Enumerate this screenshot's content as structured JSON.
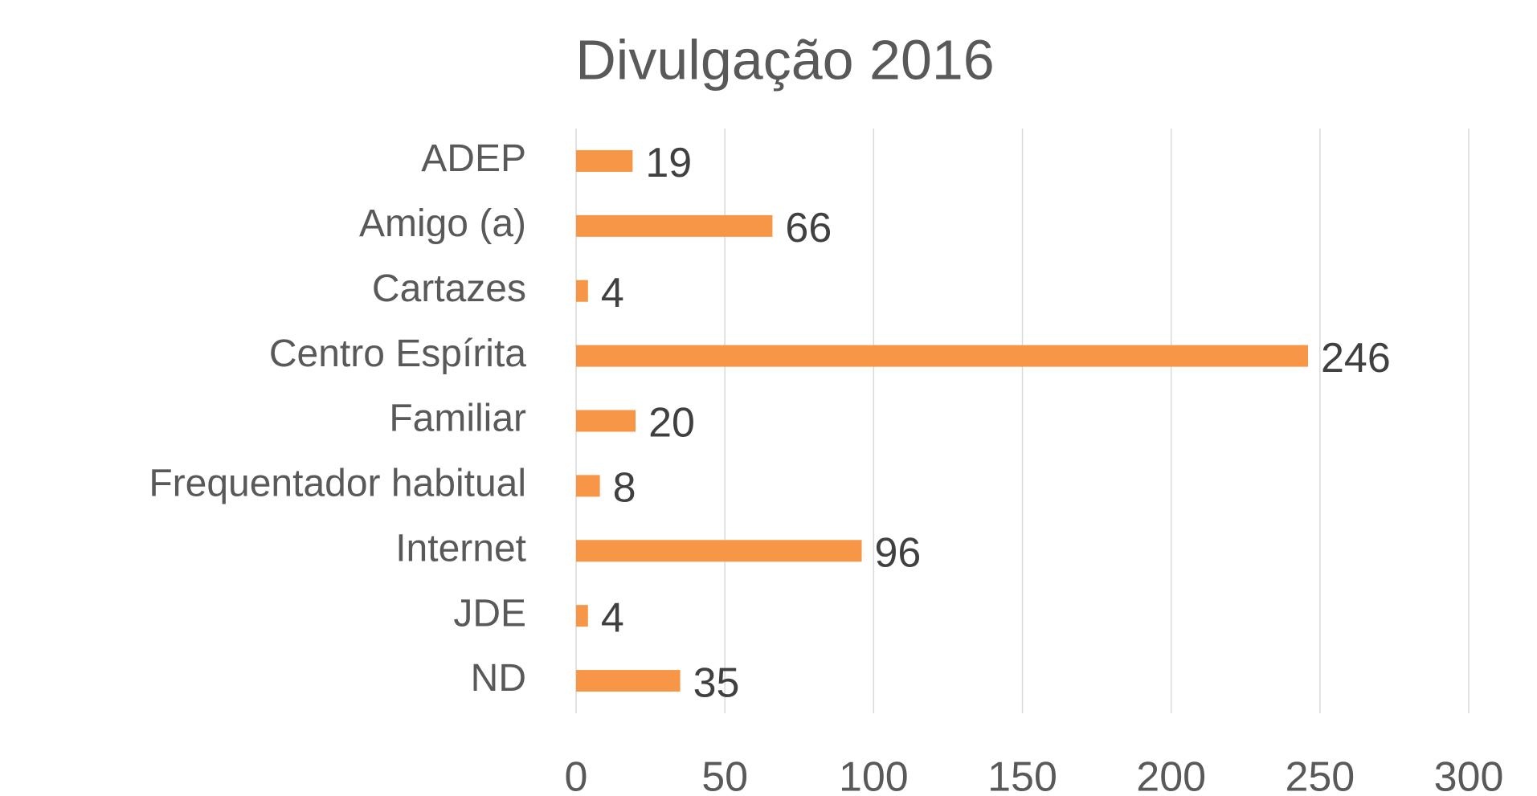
{
  "chart_data": {
    "type": "bar",
    "orientation": "horizontal",
    "title": "Divulgação 2016",
    "categories": [
      "ADEP",
      "Amigo (a)",
      "Cartazes",
      "Centro Espírita",
      "Familiar",
      "Frequentador habitual",
      "Internet",
      "JDE",
      "ND"
    ],
    "values": [
      19,
      66,
      4,
      246,
      20,
      8,
      96,
      4,
      35
    ],
    "color": "#f79646",
    "xlim": [
      0,
      300
    ],
    "xticks": [
      0,
      50,
      100,
      150,
      200,
      250,
      300
    ],
    "grid": true
  }
}
